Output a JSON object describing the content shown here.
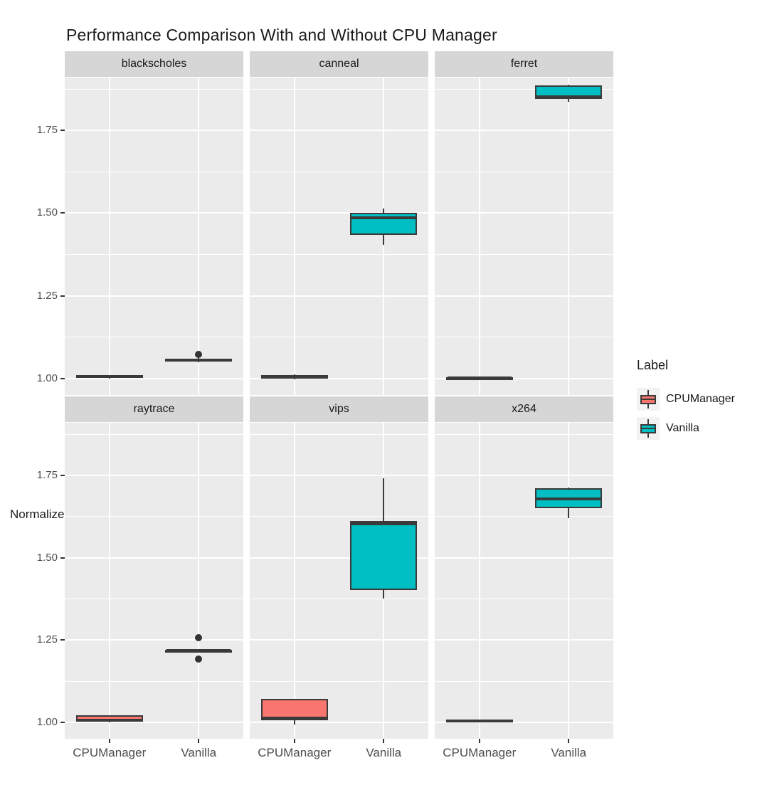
{
  "title": "Performance Comparison With and Without CPU Manager",
  "y_axis": {
    "label": "Normalized Execution Time",
    "ticks": [
      "1.00",
      "1.25",
      "1.50",
      "1.75"
    ],
    "tick_values": [
      1.0,
      1.25,
      1.5,
      1.75
    ],
    "minor_values": [
      1.125,
      1.375,
      1.625,
      1.875
    ]
  },
  "x_axis": {
    "categories": [
      "CPUManager",
      "Vanilla"
    ]
  },
  "legend": {
    "title": "Label",
    "entries": [
      {
        "label": "CPUManager",
        "color": "#F8766D"
      },
      {
        "label": "Vanilla",
        "color": "#00BFC4"
      }
    ]
  },
  "colors": {
    "cpumanager": "#F8766D",
    "vanilla": "#00BFC4",
    "panel_bg": "#EBEBEB",
    "strip_bg": "#D6D6D6",
    "grid": "#FFFFFF",
    "box_stroke": "#3A3A3A",
    "axis_text": "#4D4D4D",
    "title_text": "#1A1A1A"
  },
  "chart_data": {
    "type": "boxplot",
    "title": "Performance Comparison With and Without CPU Manager",
    "ylabel": "Normalized Execution Time",
    "xlabel": "",
    "categories": [
      "CPUManager",
      "Vanilla"
    ],
    "series_colors": {
      "CPUManager": "#F8766D",
      "Vanilla": "#00BFC4"
    },
    "ylim": [
      0.95,
      1.91
    ],
    "yticks": [
      1.0,
      1.25,
      1.5,
      1.75
    ],
    "grid": "on",
    "legend_position": "right",
    "facet_layout": {
      "rows": 2,
      "cols": 3
    },
    "facets": [
      {
        "name": "blackscholes",
        "boxes": [
          {
            "category": "CPUManager",
            "min": 1.0,
            "q1": 1.002,
            "median": 1.006,
            "q3": 1.01,
            "max": 1.011,
            "outliers": []
          },
          {
            "category": "Vanilla",
            "min": 1.05,
            "q1": 1.053,
            "median": 1.056,
            "q3": 1.06,
            "max": 1.061,
            "outliers": [
              1.073
            ]
          }
        ]
      },
      {
        "name": "canneal",
        "boxes": [
          {
            "category": "CPUManager",
            "min": 0.998,
            "q1": 1.0,
            "median": 1.005,
            "q3": 1.011,
            "max": 1.012,
            "outliers": []
          },
          {
            "category": "Vanilla",
            "min": 1.405,
            "q1": 1.435,
            "median": 1.487,
            "q3": 1.5,
            "max": 1.513,
            "outliers": []
          }
        ]
      },
      {
        "name": "ferret",
        "boxes": [
          {
            "category": "CPUManager",
            "min": 0.998,
            "q1": 0.999,
            "median": 1.001,
            "q3": 1.003,
            "max": 1.004,
            "outliers": []
          },
          {
            "category": "Vanilla",
            "min": 1.836,
            "q1": 1.845,
            "median": 1.852,
            "q3": 1.886,
            "max": 1.888,
            "outliers": []
          }
        ]
      },
      {
        "name": "raytrace",
        "boxes": [
          {
            "category": "CPUManager",
            "min": 0.999,
            "q1": 1.001,
            "median": 1.006,
            "q3": 1.021,
            "max": 1.022,
            "outliers": []
          },
          {
            "category": "Vanilla",
            "min": 1.215,
            "q1": 1.216,
            "median": 1.218,
            "q3": 1.221,
            "max": 1.222,
            "outliers": [
              1.256,
              1.192
            ]
          }
        ]
      },
      {
        "name": "vips",
        "boxes": [
          {
            "category": "CPUManager",
            "min": 0.993,
            "q1": 1.006,
            "median": 1.013,
            "q3": 1.071,
            "max": 1.072,
            "outliers": []
          },
          {
            "category": "Vanilla",
            "min": 1.375,
            "q1": 1.402,
            "median": 1.602,
            "q3": 1.612,
            "max": 1.742,
            "outliers": []
          }
        ]
      },
      {
        "name": "x264",
        "boxes": [
          {
            "category": "CPUManager",
            "min": 1.0,
            "q1": 1.002,
            "median": 1.005,
            "q3": 1.008,
            "max": 1.009,
            "outliers": []
          },
          {
            "category": "Vanilla",
            "min": 1.62,
            "q1": 1.651,
            "median": 1.678,
            "q3": 1.712,
            "max": 1.713,
            "outliers": []
          }
        ]
      }
    ]
  }
}
